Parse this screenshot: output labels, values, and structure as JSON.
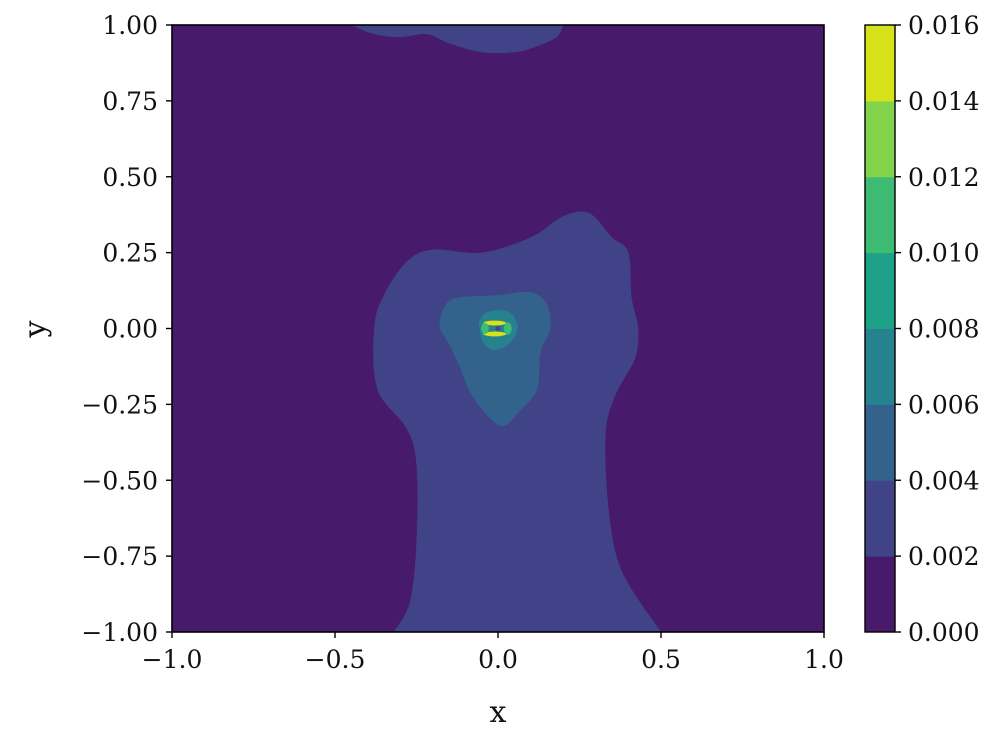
{
  "chart_data": {
    "type": "contourf",
    "xlabel": "x",
    "ylabel": "y",
    "xlim": [
      -1.0,
      1.0
    ],
    "ylim": [
      -1.0,
      1.0
    ],
    "xticks": [
      -1.0,
      -0.5,
      0.0,
      0.5,
      1.0
    ],
    "xtick_labels": [
      "−1.0",
      "−0.5",
      "0.0",
      "0.5",
      "1.0"
    ],
    "yticks": [
      1.0,
      0.75,
      0.5,
      0.25,
      0.0,
      -0.25,
      -0.5,
      -0.75,
      -1.0
    ],
    "ytick_labels": [
      "1.00",
      "0.75",
      "0.50",
      "0.25",
      "0.00",
      "−0.25",
      "−0.50",
      "−0.75",
      "−1.00"
    ],
    "colormap": "viridis",
    "colorbar": {
      "levels": [
        0.0,
        0.002,
        0.004,
        0.006,
        0.008,
        0.01,
        0.012,
        0.014,
        0.016
      ],
      "tick_labels": [
        "0.000",
        "0.002",
        "0.004",
        "0.006",
        "0.008",
        "0.010",
        "0.012",
        "0.014",
        "0.016"
      ],
      "colors": [
        "#481a6c",
        "#404387",
        "#33638d",
        "#26828e",
        "#1fa088",
        "#3fbc73",
        "#84d44b",
        "#d8e219"
      ]
    },
    "contours": [
      {
        "level_range": [
          0.002,
          0.004
        ],
        "region": "upper-blob",
        "points": [
          [
            -0.45,
            1.0
          ],
          [
            -0.38,
            0.97
          ],
          [
            -0.3,
            0.96
          ],
          [
            -0.22,
            0.97
          ],
          [
            -0.15,
            0.94
          ],
          [
            -0.05,
            0.91
          ],
          [
            0.05,
            0.91
          ],
          [
            0.12,
            0.93
          ],
          [
            0.18,
            0.96
          ],
          [
            0.2,
            1.0
          ]
        ]
      },
      {
        "level_range": [
          0.002,
          0.004
        ],
        "region": "central-plume",
        "points": [
          [
            -0.32,
            -1.0
          ],
          [
            -0.27,
            -0.9
          ],
          [
            -0.25,
            -0.7
          ],
          [
            -0.25,
            -0.45
          ],
          [
            -0.28,
            -0.33
          ],
          [
            -0.37,
            -0.2
          ],
          [
            -0.38,
            0.0
          ],
          [
            -0.35,
            0.11
          ],
          [
            -0.28,
            0.22
          ],
          [
            -0.2,
            0.26
          ],
          [
            -0.05,
            0.25
          ],
          [
            0.1,
            0.3
          ],
          [
            0.2,
            0.37
          ],
          [
            0.28,
            0.38
          ],
          [
            0.35,
            0.3
          ],
          [
            0.4,
            0.25
          ],
          [
            0.41,
            0.1
          ],
          [
            0.43,
            0.0
          ],
          [
            0.42,
            -0.1
          ],
          [
            0.36,
            -0.22
          ],
          [
            0.33,
            -0.35
          ],
          [
            0.34,
            -0.6
          ],
          [
            0.38,
            -0.8
          ],
          [
            0.5,
            -1.0
          ]
        ]
      },
      {
        "level_range": [
          0.004,
          0.006
        ],
        "region": "core",
        "points": [
          [
            -0.18,
            0.0
          ],
          [
            -0.17,
            0.06
          ],
          [
            -0.13,
            0.1
          ],
          [
            0.0,
            0.11
          ],
          [
            0.1,
            0.12
          ],
          [
            0.15,
            0.08
          ],
          [
            0.16,
            0.0
          ],
          [
            0.13,
            -0.08
          ],
          [
            0.12,
            -0.2
          ],
          [
            0.06,
            -0.28
          ],
          [
            0.02,
            -0.32
          ],
          [
            -0.02,
            -0.3
          ],
          [
            -0.08,
            -0.22
          ],
          [
            -0.12,
            -0.12
          ],
          [
            -0.15,
            -0.05
          ]
        ]
      },
      {
        "level_range": [
          0.006,
          0.008
        ],
        "region": "inner-core",
        "points": [
          [
            -0.06,
            0.02
          ],
          [
            -0.04,
            0.05
          ],
          [
            0.0,
            0.06
          ],
          [
            0.04,
            0.05
          ],
          [
            0.06,
            0.01
          ],
          [
            0.05,
            -0.03
          ],
          [
            0.02,
            -0.06
          ],
          [
            -0.02,
            -0.07
          ],
          [
            -0.05,
            -0.04
          ]
        ]
      }
    ],
    "hotspots": [
      {
        "x": -0.01,
        "y": 0.018,
        "rx": 0.035,
        "ry": 0.008,
        "level_range": [
          0.014,
          0.016
        ]
      },
      {
        "x": -0.01,
        "y": -0.018,
        "rx": 0.035,
        "ry": 0.008,
        "level_range": [
          0.014,
          0.016
        ]
      },
      {
        "x": 0.03,
        "y": 0.0,
        "rx": 0.012,
        "ry": 0.02,
        "level_range": [
          0.01,
          0.012
        ]
      },
      {
        "x": -0.04,
        "y": 0.0,
        "rx": 0.012,
        "ry": 0.018,
        "level_range": [
          0.01,
          0.012
        ]
      },
      {
        "x": 0.0,
        "y": 0.0,
        "rx": 0.008,
        "ry": 0.008,
        "level_range": [
          0.002,
          0.004
        ]
      }
    ]
  }
}
